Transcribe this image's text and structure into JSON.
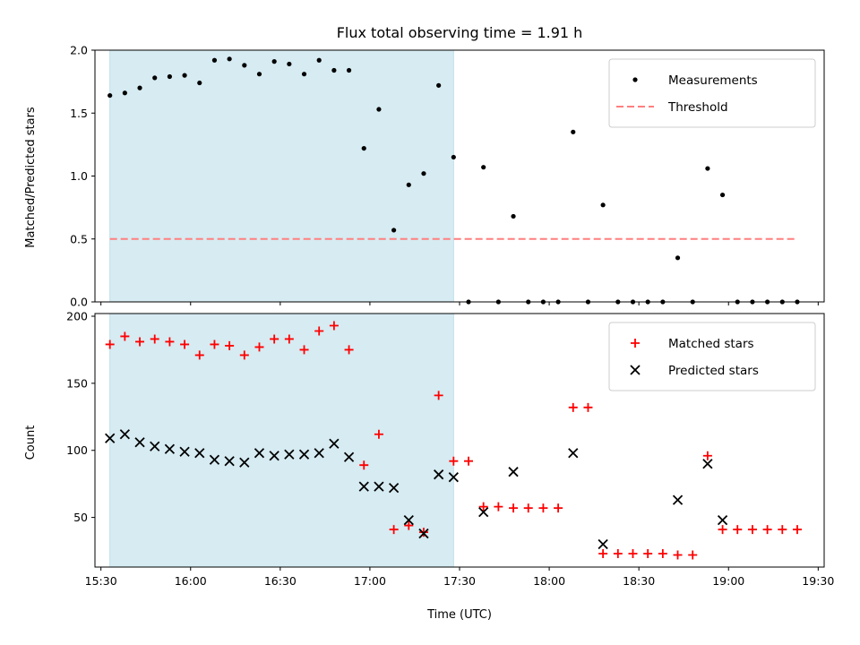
{
  "chart_data": [
    {
      "type": "scatter",
      "title": "Flux total observing time = 1.91 h",
      "xlabel": "",
      "ylabel": "Matched/Predicted stars",
      "ylim": [
        0,
        2.0
      ],
      "yticks": [
        "0.0",
        "0.5",
        "1.0",
        "1.5",
        "2.0"
      ],
      "xlim": [
        "15:28",
        "19:32"
      ],
      "shaded_region": {
        "x0": "15:33",
        "x1": "17:28",
        "color": "#add8e6"
      },
      "legend": {
        "placement": "top-right"
      },
      "series": [
        {
          "name": "Measurements",
          "marker": "dot",
          "color": "#000000",
          "points": [
            [
              "15:33",
              1.64
            ],
            [
              "15:38",
              1.66
            ],
            [
              "15:43",
              1.7
            ],
            [
              "15:48",
              1.78
            ],
            [
              "15:53",
              1.79
            ],
            [
              "15:58",
              1.8
            ],
            [
              "16:03",
              1.74
            ],
            [
              "16:08",
              1.92
            ],
            [
              "16:13",
              1.93
            ],
            [
              "16:18",
              1.88
            ],
            [
              "16:23",
              1.81
            ],
            [
              "16:28",
              1.91
            ],
            [
              "16:33",
              1.89
            ],
            [
              "16:38",
              1.81
            ],
            [
              "16:43",
              1.92
            ],
            [
              "16:48",
              1.84
            ],
            [
              "16:53",
              1.84
            ],
            [
              "16:58",
              1.22
            ],
            [
              "17:03",
              1.53
            ],
            [
              "17:08",
              0.57
            ],
            [
              "17:13",
              0.93
            ],
            [
              "17:18",
              1.02
            ],
            [
              "17:23",
              1.72
            ],
            [
              "17:28",
              1.15
            ],
            [
              "17:33",
              0.0
            ],
            [
              "17:38",
              1.07
            ],
            [
              "17:43",
              0.0
            ],
            [
              "17:48",
              0.68
            ],
            [
              "17:53",
              0.0
            ],
            [
              "17:58",
              0.0
            ],
            [
              "18:03",
              0.0
            ],
            [
              "18:08",
              1.35
            ],
            [
              "18:13",
              0.0
            ],
            [
              "18:18",
              0.77
            ],
            [
              "18:23",
              0.0
            ],
            [
              "18:28",
              0.0
            ],
            [
              "18:33",
              0.0
            ],
            [
              "18:38",
              0.0
            ],
            [
              "18:43",
              0.35
            ],
            [
              "18:48",
              0.0
            ],
            [
              "18:53",
              1.06
            ],
            [
              "18:58",
              0.85
            ],
            [
              "19:03",
              0.0
            ],
            [
              "19:08",
              0.0
            ],
            [
              "19:13",
              0.0
            ],
            [
              "19:18",
              0.0
            ],
            [
              "19:23",
              0.0
            ]
          ]
        },
        {
          "name": "Threshold",
          "marker": "dashed-line",
          "color": "#ff7f7f",
          "points": [
            [
              "15:33",
              0.5
            ],
            [
              "19:23",
              0.5
            ]
          ]
        }
      ]
    },
    {
      "type": "scatter",
      "title": "",
      "xlabel": "Time (UTC)",
      "ylabel": "Count",
      "ylim": [
        13,
        202
      ],
      "yticks": [
        "50",
        "100",
        "150",
        "200"
      ],
      "xlim": [
        "15:28",
        "19:32"
      ],
      "xticks": [
        "15:30",
        "16:00",
        "16:30",
        "17:00",
        "17:30",
        "18:00",
        "18:30",
        "19:00",
        "19:30"
      ],
      "shaded_region": {
        "x0": "15:33",
        "x1": "17:28",
        "color": "#add8e6"
      },
      "legend": {
        "placement": "top-right"
      },
      "series": [
        {
          "name": "Matched stars",
          "marker": "plus",
          "color": "#ff0000",
          "points": [
            [
              "15:33",
              179
            ],
            [
              "15:38",
              185
            ],
            [
              "15:43",
              181
            ],
            [
              "15:48",
              183
            ],
            [
              "15:53",
              181
            ],
            [
              "15:58",
              179
            ],
            [
              "16:03",
              171
            ],
            [
              "16:08",
              179
            ],
            [
              "16:13",
              178
            ],
            [
              "16:18",
              171
            ],
            [
              "16:23",
              177
            ],
            [
              "16:28",
              183
            ],
            [
              "16:33",
              183
            ],
            [
              "16:38",
              175
            ],
            [
              "16:43",
              189
            ],
            [
              "16:48",
              193
            ],
            [
              "16:53",
              175
            ],
            [
              "16:58",
              89
            ],
            [
              "17:03",
              112
            ],
            [
              "17:08",
              41
            ],
            [
              "17:13",
              44
            ],
            [
              "17:18",
              39
            ],
            [
              "17:23",
              141
            ],
            [
              "17:28",
              92
            ],
            [
              "17:33",
              92
            ],
            [
              "17:38",
              58
            ],
            [
              "17:43",
              58
            ],
            [
              "17:48",
              57
            ],
            [
              "17:53",
              57
            ],
            [
              "17:58",
              57
            ],
            [
              "18:03",
              57
            ],
            [
              "18:08",
              132
            ],
            [
              "18:13",
              132
            ],
            [
              "18:18",
              23
            ],
            [
              "18:23",
              23
            ],
            [
              "18:28",
              23
            ],
            [
              "18:33",
              23
            ],
            [
              "18:38",
              23
            ],
            [
              "18:43",
              22
            ],
            [
              "18:48",
              22
            ],
            [
              "18:53",
              96
            ],
            [
              "18:58",
              41
            ],
            [
              "19:03",
              41
            ],
            [
              "19:08",
              41
            ],
            [
              "19:13",
              41
            ],
            [
              "19:18",
              41
            ],
            [
              "19:23",
              41
            ]
          ]
        },
        {
          "name": "Predicted stars",
          "marker": "x",
          "color": "#000000",
          "points": [
            [
              "15:33",
              109
            ],
            [
              "15:38",
              112
            ],
            [
              "15:43",
              106
            ],
            [
              "15:48",
              103
            ],
            [
              "15:53",
              101
            ],
            [
              "15:58",
              99
            ],
            [
              "16:03",
              98
            ],
            [
              "16:08",
              93
            ],
            [
              "16:13",
              92
            ],
            [
              "16:18",
              91
            ],
            [
              "16:23",
              98
            ],
            [
              "16:28",
              96
            ],
            [
              "16:33",
              97
            ],
            [
              "16:38",
              97
            ],
            [
              "16:43",
              98
            ],
            [
              "16:48",
              105
            ],
            [
              "16:53",
              95
            ],
            [
              "16:58",
              73
            ],
            [
              "17:03",
              73
            ],
            [
              "17:08",
              72
            ],
            [
              "17:13",
              48
            ],
            [
              "17:18",
              38
            ],
            [
              "17:23",
              82
            ],
            [
              "17:28",
              80
            ],
            [
              "17:38",
              54
            ],
            [
              "17:48",
              84
            ],
            [
              "18:08",
              98
            ],
            [
              "18:18",
              30
            ],
            [
              "18:43",
              63
            ],
            [
              "18:53",
              90
            ],
            [
              "18:58",
              48
            ]
          ]
        }
      ]
    }
  ]
}
